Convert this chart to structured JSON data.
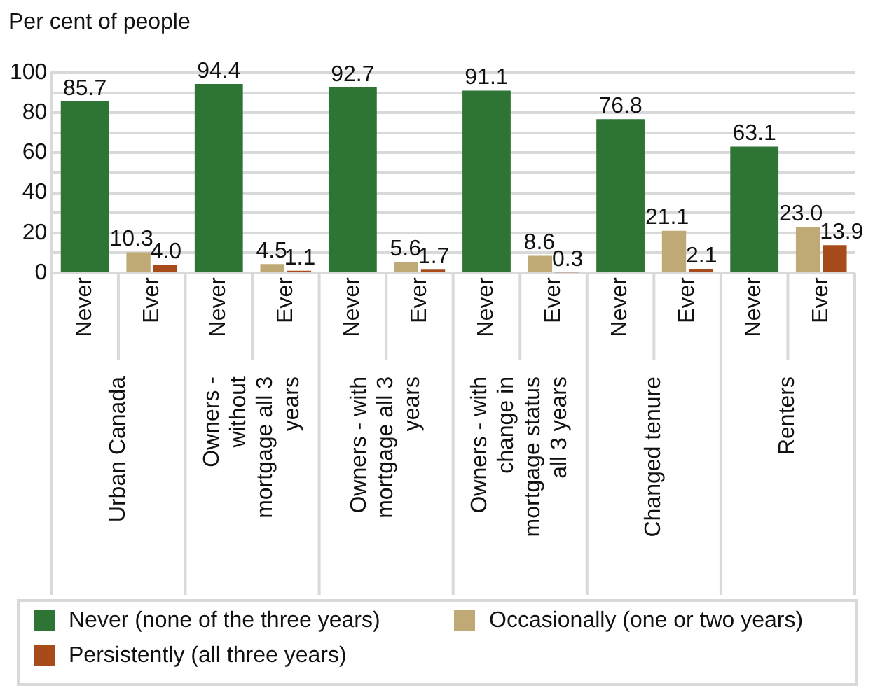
{
  "chart_data": {
    "type": "bar",
    "ylabel": "Per cent of people",
    "categories": [
      "Never",
      "Ever",
      "Never",
      "Ever",
      "Never",
      "Ever",
      "Never",
      "Ever",
      "Never",
      "Ever",
      "Never",
      "Ever"
    ],
    "annotations": [
      "Urban Canada",
      "Owners - without mortgage all 3 years",
      "Owners - with mortgage all 3 years",
      "Owners - with change in mortgage status all 3 years",
      "Changed tenure",
      "Renters"
    ],
    "series": [
      {
        "name": "Never (none of the three years)",
        "color": "#2e7535",
        "values": [
          85.7,
          null,
          94.4,
          null,
          92.7,
          null,
          91.1,
          null,
          76.8,
          null,
          63.1,
          null
        ],
        "value_labels": [
          "85.7",
          null,
          "94.4",
          null,
          "92.7",
          null,
          "91.1",
          null,
          "76.8",
          null,
          "63.1",
          null
        ]
      },
      {
        "name": "Occasionally (one or two years)",
        "color": "#bfaa76",
        "values": [
          null,
          10.3,
          null,
          4.5,
          null,
          5.6,
          null,
          8.6,
          null,
          21.1,
          null,
          23.0
        ],
        "value_labels": [
          null,
          "10.3",
          null,
          "4.5",
          null,
          "5.6",
          null,
          "8.6",
          null,
          "21.1",
          null,
          "23.0"
        ]
      },
      {
        "name": "Persistently (all three years)",
        "color": "#a84b1b",
        "values": [
          null,
          4.0,
          null,
          1.1,
          null,
          1.7,
          null,
          0.3,
          null,
          2.1,
          null,
          13.9
        ],
        "value_labels": [
          null,
          "4.0",
          null,
          "1.1",
          null,
          "1.7",
          null,
          "0.3",
          null,
          "2.1",
          null,
          "13.9"
        ]
      }
    ],
    "ylim": [
      0,
      100
    ],
    "yticks": [
      0,
      {
        "value": 10,
        "label": null
      },
      20,
      {
        "value": 30,
        "label": null
      },
      40,
      {
        "value": 50,
        "label": null
      },
      60,
      {
        "value": 70,
        "label": null
      },
      80,
      {
        "value": 90,
        "label": null
      },
      100
    ],
    "grid": "y",
    "legend": "bottom"
  }
}
